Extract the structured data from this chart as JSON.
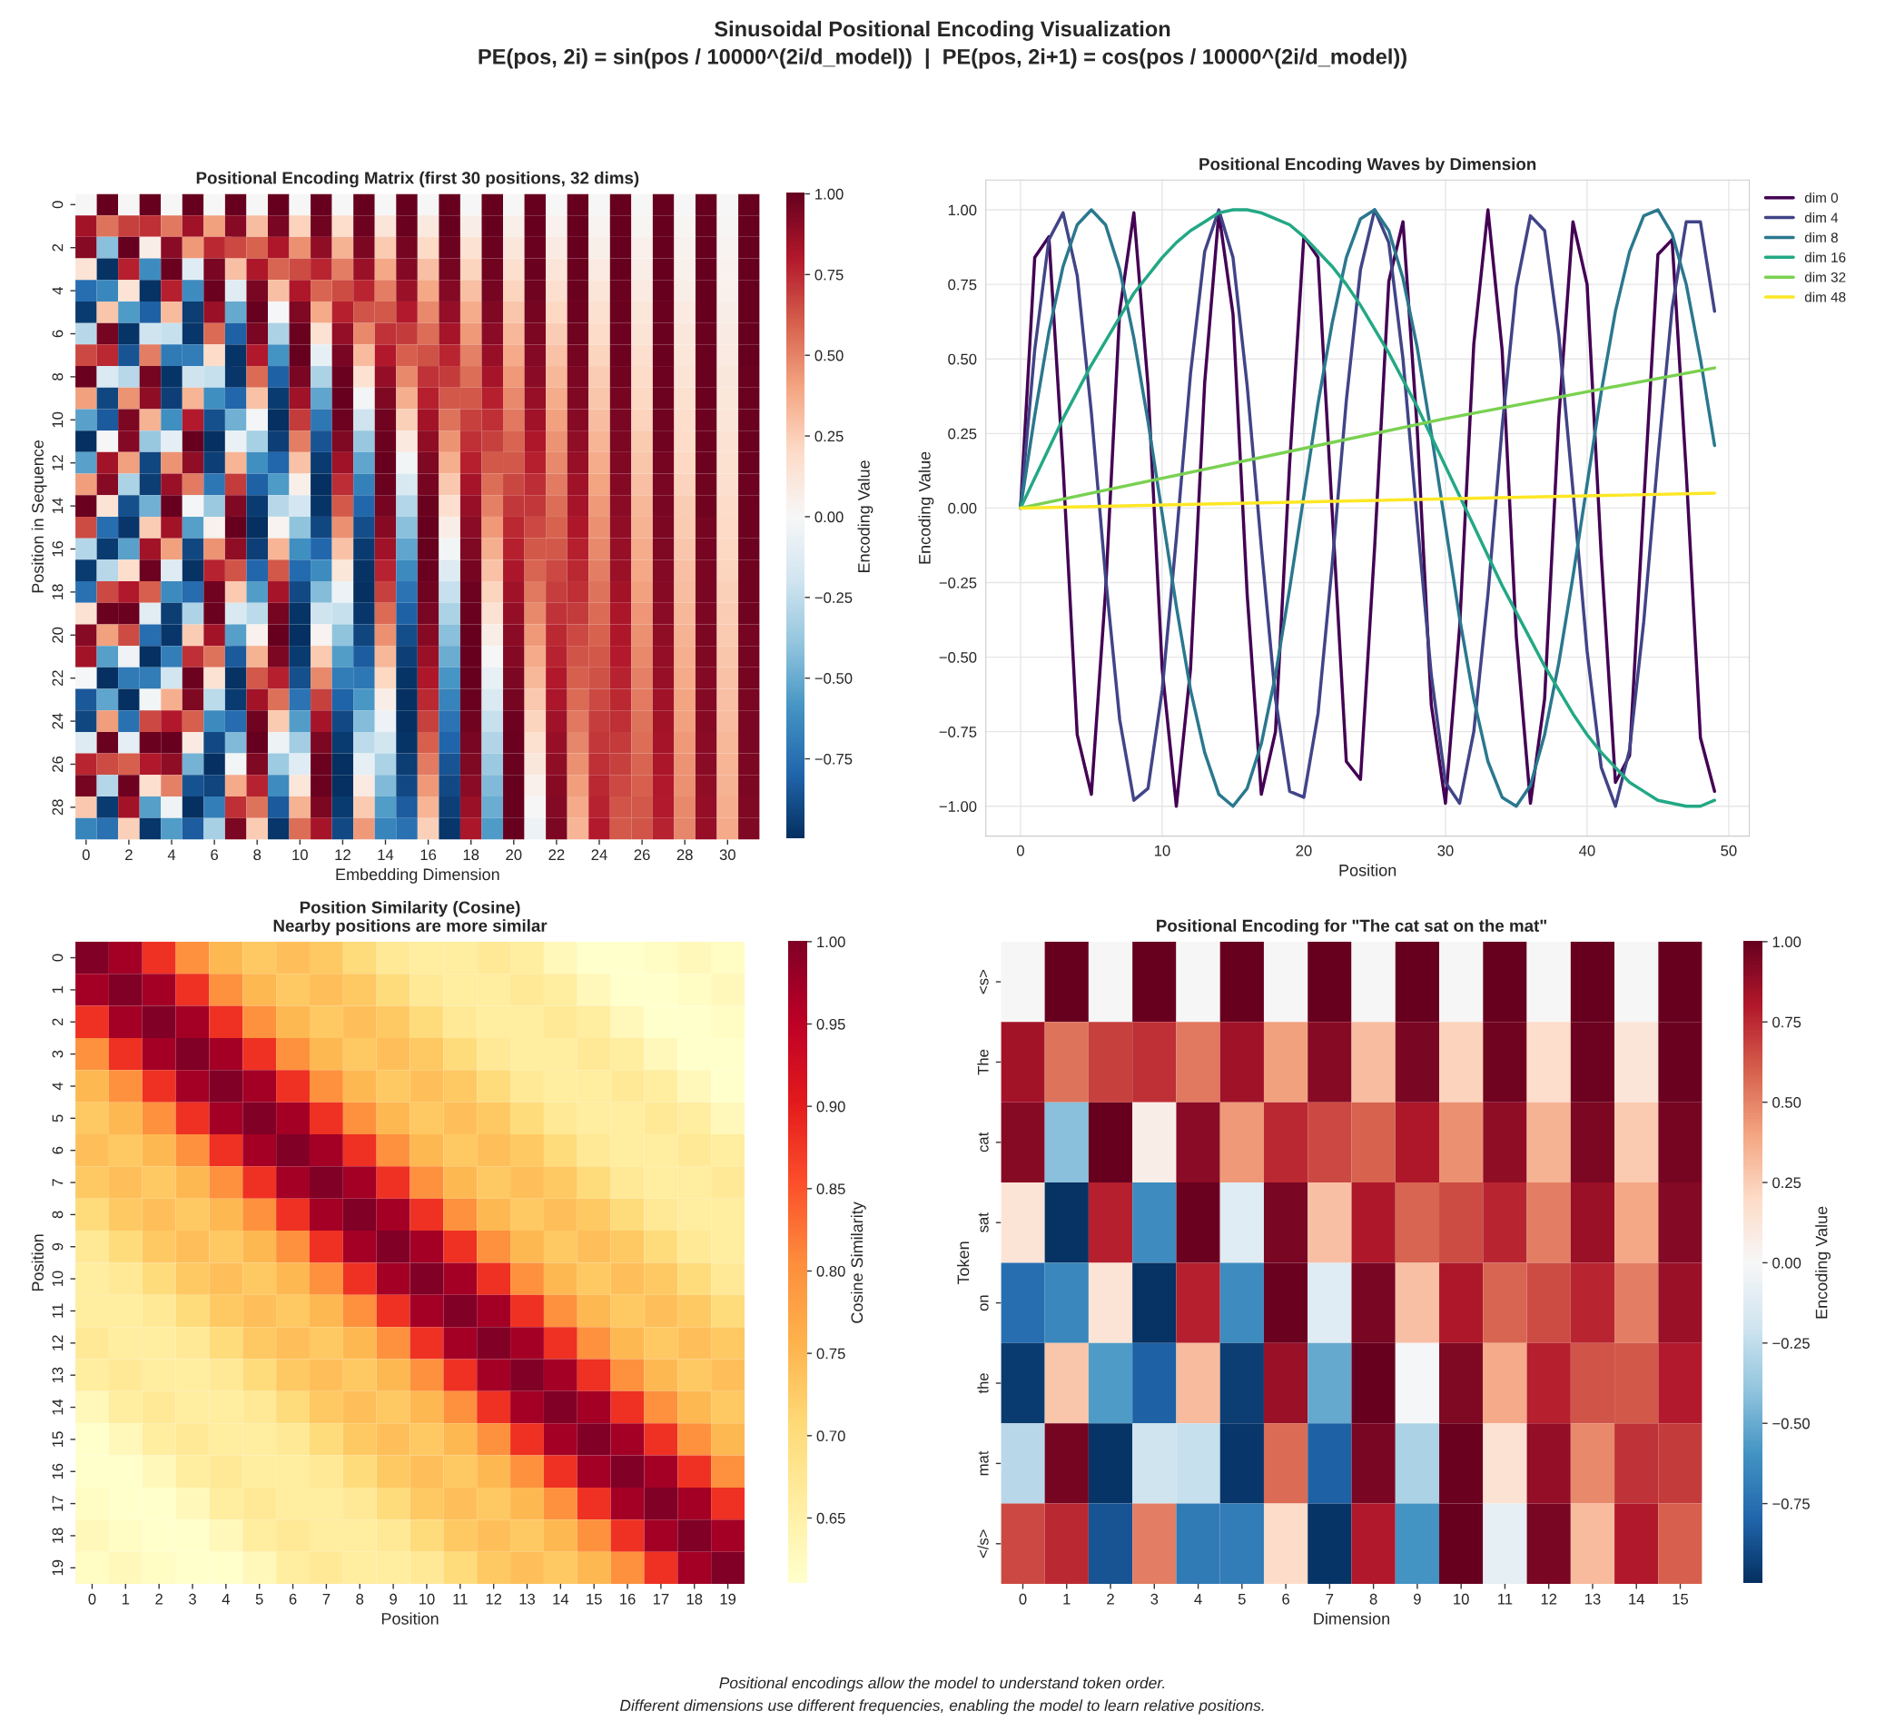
{
  "chart_data": [
    {
      "type": "other",
      "title": "Sinusoidal Positional Encoding Visualization",
      "subtitle": "PE(pos, 2i) = sin(pos / 10000^(2i/d_model))  |  PE(pos, 2i+1) = cos(pos / 10000^(2i/d_model))"
    },
    {
      "type": "heatmap",
      "title": "Positional Encoding Matrix (first 30 positions, 32 dims)",
      "xlabel": "Embedding Dimension",
      "ylabel": "Position in Sequence",
      "clabel": "Encoding Value",
      "categories": [
        "0",
        null,
        "2",
        null,
        "4",
        null,
        "6",
        null,
        "8",
        null,
        "10",
        null,
        "12",
        null,
        "14",
        null,
        "16",
        null,
        "18",
        null,
        "20",
        null,
        "22",
        null,
        "24",
        null,
        "26",
        null,
        "28",
        null,
        "30",
        null
      ],
      "y_categories": [
        "0",
        null,
        "2",
        null,
        "4",
        null,
        "6",
        null,
        "8",
        null,
        "10",
        null,
        "12",
        null,
        "14",
        null,
        "16",
        null,
        "18",
        null,
        "20",
        null,
        "22",
        null,
        "24",
        null,
        "26",
        null,
        "28",
        null
      ],
      "clim": [
        -1.0,
        1.0
      ],
      "cticks": [
        {
          "value": -0.75,
          "label": "−0.75"
        },
        {
          "value": -0.5,
          "label": "−0.50"
        },
        {
          "value": -0.25,
          "label": "−0.25"
        },
        {
          "value": 0,
          "label": "0.00"
        },
        {
          "value": 0.25,
          "label": "0.25"
        },
        {
          "value": 0.5,
          "label": "0.50"
        },
        {
          "value": 0.75,
          "label": "0.75"
        },
        {
          "value": 1,
          "label": "1.00"
        }
      ],
      "cells": [
        [
          0,
          1,
          0,
          1,
          0,
          1,
          0,
          1,
          0,
          1,
          0,
          1,
          0,
          1,
          0,
          1,
          0,
          1,
          0,
          1,
          0,
          1,
          0,
          1,
          0,
          1,
          0,
          1,
          0,
          1,
          0,
          1
        ],
        [
          0.84,
          0.54,
          0.68,
          0.73,
          0.53,
          0.85,
          0.41,
          0.91,
          0.31,
          0.95,
          0.23,
          0.97,
          0.18,
          0.98,
          0.13,
          0.99,
          0.1,
          1.0,
          0.07,
          1.0,
          0.06,
          1.0,
          0.04,
          1.0,
          0.03,
          1.0,
          0.02,
          1.0,
          0.02,
          1.0,
          0.01,
          1.0
        ],
        [
          0.91,
          -0.42,
          1.0,
          0.07,
          0.9,
          0.43,
          0.75,
          0.66,
          0.59,
          0.81,
          0.46,
          0.89,
          0.35,
          0.94,
          0.26,
          0.96,
          0.2,
          0.98,
          0.15,
          0.99,
          0.11,
          0.99,
          0.08,
          1.0,
          0.06,
          1.0,
          0.05,
          1.0,
          0.04,
          1.0,
          0.03,
          1.0
        ],
        [
          0.14,
          -0.99,
          0.78,
          -0.63,
          0.99,
          -0.12,
          0.95,
          0.3,
          0.81,
          0.58,
          0.65,
          0.76,
          0.51,
          0.86,
          0.39,
          0.92,
          0.3,
          0.96,
          0.22,
          0.97,
          0.17,
          0.99,
          0.13,
          0.99,
          0.09,
          1.0,
          0.07,
          1.0,
          0.05,
          1.0,
          0.04,
          1.0
        ],
        [
          -0.76,
          -0.65,
          0.14,
          -0.99,
          0.78,
          -0.63,
          0.99,
          -0.12,
          0.95,
          0.3,
          0.81,
          0.58,
          0.65,
          0.76,
          0.51,
          0.86,
          0.39,
          0.92,
          0.3,
          0.96,
          0.22,
          0.97,
          0.17,
          0.99,
          0.13,
          0.99,
          0.09,
          1.0,
          0.07,
          1.0,
          0.05,
          1.0
        ],
        [
          -0.96,
          0.28,
          -0.57,
          -0.82,
          0.32,
          -0.95,
          0.86,
          -0.51,
          1.0,
          -0.01,
          0.93,
          0.38,
          0.78,
          0.63,
          0.62,
          0.79,
          0.48,
          0.88,
          0.37,
          0.93,
          0.28,
          0.96,
          0.21,
          0.98,
          0.16,
          0.99,
          0.12,
          0.99,
          0.09,
          1.0,
          0.07,
          1.0
        ],
        [
          -0.28,
          0.96,
          -0.98,
          -0.21,
          -0.23,
          -0.97,
          0.57,
          -0.82,
          0.95,
          -0.32,
          0.99,
          0.15,
          0.88,
          0.48,
          0.72,
          0.7,
          0.56,
          0.83,
          0.43,
          0.9,
          0.33,
          0.94,
          0.25,
          0.97,
          0.19,
          0.98,
          0.14,
          0.99,
          0.11,
          0.99,
          0.08,
          1.0
        ],
        [
          0.66,
          0.75,
          -0.86,
          0.51,
          -0.71,
          -0.7,
          0.19,
          -0.98,
          0.8,
          -0.6,
          1.0,
          -0.09,
          0.95,
          0.32,
          0.8,
          0.6,
          0.64,
          0.76,
          0.5,
          0.87,
          0.38,
          0.92,
          0.29,
          0.96,
          0.22,
          0.98,
          0.17,
          0.99,
          0.12,
          0.99,
          0.09,
          1.0
        ],
        [
          0.99,
          -0.15,
          -0.28,
          0.96,
          -0.98,
          -0.21,
          -0.23,
          -0.97,
          0.57,
          -0.82,
          0.95,
          -0.32,
          0.99,
          0.15,
          0.88,
          0.48,
          0.72,
          0.7,
          0.56,
          0.83,
          0.43,
          0.9,
          0.33,
          0.94,
          0.25,
          0.97,
          0.19,
          0.98,
          0.14,
          0.99,
          0.11,
          0.99
        ],
        [
          0.41,
          -0.91,
          0.45,
          0.89,
          -0.94,
          0.34,
          -0.61,
          -0.79,
          0.29,
          -0.96,
          0.85,
          -0.53,
          1.0,
          -0.03,
          0.93,
          0.36,
          0.78,
          0.62,
          0.62,
          0.78,
          0.48,
          0.87,
          0.37,
          0.93,
          0.28,
          0.96,
          0.21,
          0.98,
          0.16,
          0.99,
          0.12,
          0.99
        ],
        [
          -0.54,
          -0.84,
          0.94,
          0.35,
          -0.61,
          0.79,
          -0.88,
          -0.48,
          -0.02,
          -1.0,
          0.7,
          -0.72,
          0.98,
          -0.21,
          0.97,
          0.24,
          0.84,
          0.54,
          0.68,
          0.73,
          0.53,
          0.85,
          0.41,
          0.91,
          0.31,
          0.95,
          0.23,
          0.97,
          0.18,
          0.98,
          0.13,
          0.99
        ],
        [
          -1.0,
          0.0,
          0.92,
          -0.38,
          -0.1,
          1.0,
          -1.0,
          -0.07,
          -0.33,
          -0.94,
          0.51,
          -0.86,
          0.93,
          -0.38,
          0.99,
          0.1,
          0.89,
          0.45,
          0.73,
          0.68,
          0.58,
          0.81,
          0.45,
          0.89,
          0.34,
          0.94,
          0.26,
          0.97,
          0.19,
          0.98,
          0.15,
          0.99
        ],
        [
          -0.54,
          0.84,
          0.41,
          -0.91,
          0.45,
          0.89,
          -0.94,
          0.34,
          -0.61,
          -0.79,
          0.29,
          -0.96,
          0.85,
          -0.53,
          1.0,
          -0.03,
          0.93,
          0.36,
          0.78,
          0.62,
          0.62,
          0.78,
          0.48,
          0.87,
          0.37,
          0.93,
          0.28,
          0.96,
          0.21,
          0.98,
          0.16,
          0.99
        ],
        [
          0.42,
          0.91,
          -0.32,
          -0.95,
          0.86,
          0.52,
          -0.72,
          0.7,
          -0.82,
          -0.57,
          0.06,
          -1.0,
          0.74,
          -0.68,
          0.99,
          -0.16,
          0.96,
          0.27,
          0.83,
          0.56,
          0.67,
          0.74,
          0.52,
          0.85,
          0.4,
          0.92,
          0.3,
          0.95,
          0.23,
          0.97,
          0.17,
          0.98
        ],
        [
          0.99,
          0.14,
          -0.88,
          -0.48,
          1.0,
          -0.02,
          -0.37,
          0.93,
          -0.96,
          -0.28,
          -0.18,
          -0.98,
          0.61,
          -0.79,
          0.96,
          -0.29,
          0.99,
          0.17,
          0.87,
          0.5,
          0.71,
          0.71,
          0.56,
          0.83,
          0.43,
          0.9,
          0.33,
          0.95,
          0.25,
          0.97,
          0.19,
          0.98
        ],
        [
          0.65,
          -0.76,
          -0.97,
          0.25,
          0.84,
          -0.55,
          0.04,
          1.0,
          -1.0,
          0.03,
          -0.4,
          -0.91,
          0.46,
          -0.89,
          0.91,
          -0.42,
          1.0,
          0.07,
          0.9,
          0.43,
          0.75,
          0.66,
          0.59,
          0.81,
          0.46,
          0.89,
          0.35,
          0.94,
          0.26,
          0.96,
          0.2,
          0.98
        ],
        [
          -0.29,
          -0.96,
          -0.54,
          0.84,
          0.41,
          -0.91,
          0.45,
          0.89,
          -0.94,
          0.34,
          -0.61,
          -0.79,
          0.29,
          -0.96,
          0.85,
          -0.53,
          1.0,
          -0.03,
          0.93,
          0.36,
          0.78,
          0.62,
          0.62,
          0.78,
          0.48,
          0.87,
          0.37,
          0.93,
          0.28,
          0.96,
          0.21,
          0.98
        ],
        [
          -0.96,
          -0.28,
          0.18,
          0.98,
          -0.13,
          -0.99,
          0.77,
          0.63,
          -0.79,
          0.62,
          -0.78,
          -0.63,
          0.12,
          -0.99,
          0.77,
          -0.64,
          0.99,
          -0.13,
          0.96,
          0.29,
          0.82,
          0.58,
          0.66,
          0.75,
          0.51,
          0.86,
          0.39,
          0.92,
          0.3,
          0.95,
          0.22,
          0.97
        ],
        [
          -0.75,
          0.66,
          0.8,
          0.6,
          -0.64,
          -0.77,
          0.97,
          0.26,
          -0.56,
          0.83,
          -0.9,
          -0.43,
          -0.06,
          -1.0,
          0.68,
          -0.74,
          0.97,
          -0.23,
          0.98,
          0.22,
          0.85,
          0.53,
          0.69,
          0.73,
          0.54,
          0.84,
          0.41,
          0.91,
          0.31,
          0.95,
          0.24,
          0.97
        ],
        [
          0.15,
          0.99,
          0.99,
          -0.11,
          -0.95,
          -0.31,
          0.99,
          -0.16,
          -0.27,
          0.96,
          -0.98,
          -0.21,
          -0.23,
          -0.97,
          0.57,
          -0.82,
          0.95,
          -0.32,
          0.99,
          0.15,
          0.88,
          0.48,
          0.72,
          0.7,
          0.57,
          0.82,
          0.44,
          0.9,
          0.33,
          0.94,
          0.25,
          0.97
        ],
        [
          0.91,
          0.41,
          0.65,
          -0.76,
          -0.97,
          0.25,
          0.84,
          -0.55,
          0.04,
          1.0,
          -1.0,
          0.03,
          -0.4,
          -0.92,
          0.46,
          -0.89,
          0.91,
          -0.42,
          1.0,
          0.07,
          0.9,
          0.43,
          0.75,
          0.66,
          0.59,
          0.81,
          0.46,
          0.89,
          0.35,
          0.94,
          0.26,
          0.96
        ],
        [
          0.84,
          -0.55,
          -0.04,
          -1.0,
          -0.69,
          0.73,
          0.54,
          -0.84,
          0.35,
          0.94,
          -0.96,
          0.26,
          -0.56,
          -0.83,
          0.33,
          -0.94,
          0.86,
          -0.5,
          1.0,
          0.0,
          0.92,
          0.38,
          0.77,
          0.63,
          0.62,
          0.79,
          0.48,
          0.88,
          0.36,
          0.93,
          0.28,
          0.96
        ],
        [
          -0.01,
          -1.0,
          -0.71,
          -0.7,
          -0.19,
          0.98,
          0.15,
          -0.99,
          0.62,
          0.78,
          -0.88,
          0.48,
          -0.7,
          -0.72,
          0.21,
          -0.98,
          0.81,
          -0.59,
          1.0,
          -0.08,
          0.94,
          0.33,
          0.8,
          0.6,
          0.64,
          0.77,
          0.5,
          0.87,
          0.38,
          0.92,
          0.29,
          0.96
        ],
        [
          -0.85,
          -0.53,
          -1.0,
          -0.03,
          0.36,
          0.93,
          -0.27,
          -0.96,
          0.84,
          0.55,
          -0.74,
          0.68,
          -0.81,
          -0.58,
          0.07,
          -1.0,
          0.75,
          -0.67,
          0.99,
          -0.15,
          0.96,
          0.27,
          0.82,
          0.57,
          0.66,
          0.75,
          0.52,
          0.85,
          0.4,
          0.92,
          0.3,
          0.95
        ],
        [
          -0.91,
          0.42,
          -0.75,
          0.66,
          0.8,
          0.6,
          -0.64,
          -0.77,
          0.97,
          0.26,
          -0.56,
          0.83,
          -0.9,
          -0.43,
          -0.06,
          -1.0,
          0.68,
          -0.74,
          0.97,
          -0.23,
          0.98,
          0.22,
          0.85,
          0.53,
          0.69,
          0.73,
          0.54,
          0.84,
          0.41,
          0.91,
          0.31,
          0.95
        ],
        [
          -0.13,
          0.99,
          -0.1,
          0.99,
          1.0,
          0.08,
          -0.9,
          -0.44,
          1.0,
          -0.05,
          -0.35,
          0.94,
          -0.96,
          -0.26,
          -0.19,
          -0.98,
          0.6,
          -0.8,
          0.95,
          -0.3,
          0.99,
          0.16,
          0.87,
          0.49,
          0.71,
          0.7,
          0.56,
          0.83,
          0.43,
          0.9,
          0.33,
          0.95
        ],
        [
          0.76,
          0.65,
          0.6,
          0.8,
          0.89,
          -0.47,
          -1.0,
          -0.03,
          0.93,
          -0.36,
          -0.12,
          0.99,
          -1.0,
          -0.09,
          -0.32,
          -0.95,
          0.52,
          -0.86,
          0.93,
          -0.37,
          0.99,
          0.11,
          0.89,
          0.46,
          0.73,
          0.68,
          0.58,
          0.82,
          0.45,
          0.9,
          0.34,
          0.94
        ],
        [
          0.96,
          -0.29,
          0.98,
          0.17,
          0.5,
          -0.87,
          -0.92,
          0.38,
          0.77,
          -0.63,
          0.12,
          0.99,
          -1.0,
          0.09,
          -0.44,
          -0.9,
          0.43,
          -0.9,
          0.9,
          -0.44,
          1.0,
          0.05,
          0.91,
          0.42,
          0.75,
          0.66,
          0.6,
          0.8,
          0.46,
          0.89,
          0.35,
          0.94
        ],
        [
          0.27,
          -0.96,
          0.84,
          -0.55,
          -0.04,
          -1.0,
          -0.69,
          0.73,
          0.54,
          -0.84,
          0.35,
          0.94,
          -0.96,
          0.26,
          -0.56,
          -0.83,
          0.34,
          -0.94,
          0.86,
          -0.5,
          1.0,
          0.0,
          0.92,
          0.38,
          0.77,
          0.63,
          0.62,
          0.79,
          0.48,
          0.88,
          0.36,
          0.93
        ],
        [
          -0.66,
          -0.75,
          0.24,
          -0.97,
          -0.56,
          -0.83,
          -0.33,
          0.94,
          0.25,
          -0.97,
          0.56,
          0.83,
          -0.9,
          0.43,
          -0.66,
          -0.75,
          0.24,
          -0.97,
          0.82,
          -0.57,
          1.0,
          -0.06,
          0.94,
          0.34,
          0.79,
          0.61,
          0.63,
          0.77,
          0.49,
          0.87,
          0.38,
          0.93
        ]
      ]
    },
    {
      "type": "line",
      "title": "Positional Encoding Waves by Dimension",
      "xlabel": "Position",
      "ylabel": "Encoding Value",
      "grid": true,
      "legend": "top right",
      "xlim": [
        -2.45,
        51.45
      ],
      "ylim": [
        -1.1,
        1.1
      ],
      "xticks": [
        0,
        10,
        20,
        30,
        40,
        50
      ],
      "yticks": [
        {
          "value": -1,
          "label": "−1.00"
        },
        {
          "value": -0.75,
          "label": "−0.75"
        },
        {
          "value": -0.5,
          "label": "−0.50"
        },
        {
          "value": -0.25,
          "label": "−0.25"
        },
        {
          "value": 0,
          "label": "0.00"
        },
        {
          "value": 0.25,
          "label": "0.25"
        },
        {
          "value": 0.5,
          "label": "0.50"
        },
        {
          "value": 0.75,
          "label": "0.75"
        },
        {
          "value": 1,
          "label": "1.00"
        }
      ],
      "x": [
        0,
        1,
        2,
        3,
        4,
        5,
        6,
        7,
        8,
        9,
        10,
        11,
        12,
        13,
        14,
        15,
        16,
        17,
        18,
        19,
        20,
        21,
        22,
        23,
        24,
        25,
        26,
        27,
        28,
        29,
        30,
        31,
        32,
        33,
        34,
        35,
        36,
        37,
        38,
        39,
        40,
        41,
        42,
        43,
        44,
        45,
        46,
        47,
        48,
        49
      ],
      "series": [
        {
          "name": "dim 0",
          "color": "#440154",
          "values": [
            0,
            0.84,
            0.91,
            0.14,
            -0.76,
            -0.96,
            -0.28,
            0.66,
            0.99,
            0.41,
            -0.54,
            -1.0,
            -0.54,
            0.42,
            0.99,
            0.65,
            -0.29,
            -0.96,
            -0.75,
            0.15,
            0.91,
            0.84,
            -0.01,
            -0.85,
            -0.91,
            -0.13,
            0.76,
            0.96,
            0.27,
            -0.66,
            -0.99,
            -0.4,
            0.55,
            1.0,
            0.53,
            -0.43,
            -0.99,
            -0.64,
            0.3,
            0.96,
            0.75,
            -0.16,
            -0.92,
            -0.83,
            0.02,
            0.85,
            0.9,
            0.12,
            -0.77,
            -0.95
          ]
        },
        {
          "name": "dim 4",
          "color": "#414487",
          "values": [
            0,
            0.53,
            0.9,
            0.99,
            0.78,
            0.32,
            -0.23,
            -0.71,
            -0.98,
            -0.94,
            -0.61,
            -0.1,
            0.45,
            0.86,
            1.0,
            0.84,
            0.41,
            -0.13,
            -0.64,
            -0.95,
            -0.97,
            -0.69,
            -0.19,
            0.36,
            0.8,
            1.0,
            0.89,
            0.5,
            -0.04,
            -0.56,
            -0.92,
            -0.99,
            -0.75,
            -0.29,
            0.27,
            0.74,
            0.98,
            0.93,
            0.58,
            0.06,
            -0.48,
            -0.87,
            -1.0,
            -0.81,
            -0.38,
            0.17,
            0.67,
            0.96,
            0.96,
            0.66
          ]
        },
        {
          "name": "dim 8",
          "color": "#2a788e",
          "values": [
            0,
            0.31,
            0.59,
            0.81,
            0.95,
            1.0,
            0.95,
            0.8,
            0.57,
            0.29,
            -0.02,
            -0.33,
            -0.61,
            -0.82,
            -0.96,
            -1.0,
            -0.94,
            -0.79,
            -0.56,
            -0.27,
            0.04,
            0.35,
            0.62,
            0.84,
            0.97,
            1.0,
            0.93,
            0.77,
            0.54,
            0.25,
            -0.06,
            -0.37,
            -0.64,
            -0.85,
            -0.97,
            -1.0,
            -0.93,
            -0.76,
            -0.52,
            -0.23,
            0.08,
            0.39,
            0.66,
            0.86,
            0.98,
            1.0,
            0.92,
            0.75,
            0.5,
            0.21
          ]
        },
        {
          "name": "dim 16",
          "color": "#22a884",
          "values": [
            0,
            0.1,
            0.2,
            0.3,
            0.39,
            0.48,
            0.56,
            0.64,
            0.72,
            0.78,
            0.84,
            0.89,
            0.93,
            0.96,
            0.99,
            1.0,
            1.0,
            0.99,
            0.97,
            0.95,
            0.91,
            0.86,
            0.81,
            0.75,
            0.68,
            0.6,
            0.52,
            0.43,
            0.34,
            0.24,
            0.14,
            0.04,
            -0.06,
            -0.16,
            -0.26,
            -0.35,
            -0.44,
            -0.53,
            -0.61,
            -0.69,
            -0.76,
            -0.82,
            -0.87,
            -0.92,
            -0.95,
            -0.98,
            -0.99,
            -1.0,
            -1.0,
            -0.98
          ]
        },
        {
          "name": "dim 32",
          "color": "#7ad151",
          "x": [
            0,
            10,
            20,
            30,
            40,
            49
          ],
          "values": [
            0,
            0.1,
            0.2,
            0.3,
            0.39,
            0.47
          ]
        },
        {
          "name": "dim 48",
          "color": "#fde725",
          "x": [
            0,
            49
          ],
          "values": [
            0,
            0.05
          ]
        }
      ]
    },
    {
      "type": "heatmap",
      "title": "Position Similarity (Cosine)",
      "subtitle": "Nearby positions are more similar",
      "xlabel": "Position",
      "ylabel": "Position",
      "clabel": "Cosine Similarity",
      "categories": [
        "0",
        "1",
        "2",
        "3",
        "4",
        "5",
        "6",
        "7",
        "8",
        "9",
        "10",
        "11",
        "12",
        "13",
        "14",
        "15",
        "16",
        "17",
        "18",
        "19"
      ],
      "y_categories": [
        "0",
        "1",
        "2",
        "3",
        "4",
        "5",
        "6",
        "7",
        "8",
        "9",
        "10",
        "11",
        "12",
        "13",
        "14",
        "15",
        "16",
        "17",
        "18",
        "19"
      ],
      "clim": [
        0.61,
        1.0
      ],
      "cticks": [
        {
          "value": 0.65,
          "label": "0.65"
        },
        {
          "value": 0.7,
          "label": "0.70"
        },
        {
          "value": 0.75,
          "label": "0.75"
        },
        {
          "value": 0.8,
          "label": "0.80"
        },
        {
          "value": 0.85,
          "label": "0.85"
        },
        {
          "value": 0.9,
          "label": "0.90"
        },
        {
          "value": 0.95,
          "label": "0.95"
        },
        {
          "value": 1.0,
          "label": "1.00"
        }
      ],
      "cells": [
        [
          1.0,
          0.97,
          0.88,
          0.8,
          0.75,
          0.73,
          0.74,
          0.73,
          0.7,
          0.67,
          0.66,
          0.66,
          0.67,
          0.66,
          0.63,
          0.61,
          0.61,
          0.62,
          0.63,
          0.62
        ],
        [
          0.97,
          1.0,
          0.97,
          0.88,
          0.8,
          0.75,
          0.73,
          0.74,
          0.73,
          0.7,
          0.67,
          0.66,
          0.66,
          0.67,
          0.66,
          0.63,
          0.61,
          0.61,
          0.62,
          0.63
        ],
        [
          0.88,
          0.97,
          1.0,
          0.97,
          0.88,
          0.8,
          0.75,
          0.73,
          0.74,
          0.73,
          0.7,
          0.67,
          0.66,
          0.66,
          0.67,
          0.66,
          0.63,
          0.61,
          0.61,
          0.62
        ],
        [
          0.8,
          0.88,
          0.97,
          1.0,
          0.97,
          0.88,
          0.8,
          0.75,
          0.73,
          0.74,
          0.73,
          0.7,
          0.67,
          0.66,
          0.66,
          0.67,
          0.66,
          0.63,
          0.61,
          0.61
        ],
        [
          0.75,
          0.8,
          0.88,
          0.97,
          1.0,
          0.97,
          0.88,
          0.8,
          0.75,
          0.73,
          0.74,
          0.73,
          0.7,
          0.67,
          0.66,
          0.66,
          0.67,
          0.66,
          0.63,
          0.61
        ],
        [
          0.73,
          0.75,
          0.8,
          0.88,
          0.97,
          1.0,
          0.97,
          0.88,
          0.8,
          0.75,
          0.73,
          0.74,
          0.73,
          0.7,
          0.67,
          0.66,
          0.66,
          0.67,
          0.66,
          0.63
        ],
        [
          0.74,
          0.73,
          0.75,
          0.8,
          0.88,
          0.97,
          1.0,
          0.97,
          0.88,
          0.8,
          0.75,
          0.73,
          0.74,
          0.73,
          0.7,
          0.67,
          0.66,
          0.66,
          0.67,
          0.66
        ],
        [
          0.73,
          0.74,
          0.73,
          0.75,
          0.8,
          0.88,
          0.97,
          1.0,
          0.97,
          0.88,
          0.8,
          0.75,
          0.73,
          0.74,
          0.73,
          0.7,
          0.67,
          0.66,
          0.66,
          0.67
        ],
        [
          0.7,
          0.73,
          0.74,
          0.73,
          0.75,
          0.8,
          0.88,
          0.97,
          1.0,
          0.97,
          0.88,
          0.8,
          0.75,
          0.73,
          0.74,
          0.73,
          0.7,
          0.67,
          0.66,
          0.66
        ],
        [
          0.67,
          0.7,
          0.73,
          0.74,
          0.73,
          0.75,
          0.8,
          0.88,
          0.97,
          1.0,
          0.97,
          0.88,
          0.8,
          0.75,
          0.73,
          0.74,
          0.73,
          0.7,
          0.67,
          0.66
        ],
        [
          0.66,
          0.67,
          0.7,
          0.73,
          0.74,
          0.73,
          0.75,
          0.8,
          0.88,
          0.97,
          1.0,
          0.97,
          0.88,
          0.8,
          0.75,
          0.73,
          0.74,
          0.73,
          0.7,
          0.67
        ],
        [
          0.66,
          0.66,
          0.67,
          0.7,
          0.73,
          0.74,
          0.73,
          0.75,
          0.8,
          0.88,
          0.97,
          1.0,
          0.97,
          0.88,
          0.8,
          0.75,
          0.73,
          0.74,
          0.73,
          0.7
        ],
        [
          0.67,
          0.66,
          0.66,
          0.67,
          0.7,
          0.73,
          0.74,
          0.73,
          0.75,
          0.8,
          0.88,
          0.97,
          1.0,
          0.97,
          0.88,
          0.8,
          0.75,
          0.73,
          0.74,
          0.73
        ],
        [
          0.66,
          0.67,
          0.66,
          0.66,
          0.67,
          0.7,
          0.73,
          0.74,
          0.73,
          0.75,
          0.8,
          0.88,
          0.97,
          1.0,
          0.97,
          0.88,
          0.8,
          0.75,
          0.73,
          0.74
        ],
        [
          0.63,
          0.66,
          0.67,
          0.66,
          0.66,
          0.67,
          0.7,
          0.73,
          0.74,
          0.73,
          0.75,
          0.8,
          0.88,
          0.97,
          1.0,
          0.97,
          0.88,
          0.8,
          0.75,
          0.73
        ],
        [
          0.61,
          0.63,
          0.66,
          0.67,
          0.66,
          0.66,
          0.67,
          0.7,
          0.73,
          0.74,
          0.73,
          0.75,
          0.8,
          0.88,
          0.97,
          1.0,
          0.97,
          0.88,
          0.8,
          0.75
        ],
        [
          0.61,
          0.61,
          0.63,
          0.66,
          0.67,
          0.66,
          0.66,
          0.67,
          0.7,
          0.73,
          0.74,
          0.73,
          0.75,
          0.8,
          0.88,
          0.97,
          1.0,
          0.97,
          0.88,
          0.8
        ],
        [
          0.62,
          0.61,
          0.61,
          0.63,
          0.66,
          0.67,
          0.66,
          0.66,
          0.67,
          0.7,
          0.73,
          0.74,
          0.73,
          0.75,
          0.8,
          0.88,
          0.97,
          1.0,
          0.97,
          0.88
        ],
        [
          0.63,
          0.62,
          0.61,
          0.61,
          0.63,
          0.66,
          0.67,
          0.66,
          0.66,
          0.67,
          0.7,
          0.73,
          0.74,
          0.73,
          0.75,
          0.8,
          0.88,
          0.97,
          1.0,
          0.97
        ],
        [
          0.62,
          0.63,
          0.62,
          0.61,
          0.61,
          0.63,
          0.66,
          0.67,
          0.66,
          0.66,
          0.67,
          0.7,
          0.73,
          0.74,
          0.73,
          0.75,
          0.8,
          0.88,
          0.97,
          1.0
        ]
      ]
    },
    {
      "type": "heatmap",
      "title": "Positional Encoding for \"The cat sat on the mat\"",
      "xlabel": "Dimension",
      "ylabel": "Token",
      "clabel": "Encoding Value",
      "categories": [
        "0",
        "1",
        "2",
        "3",
        "4",
        "5",
        "6",
        "7",
        "8",
        "9",
        "10",
        "11",
        "12",
        "13",
        "14",
        "15"
      ],
      "y_categories": [
        "<s>",
        "The",
        "cat",
        "sat",
        "on",
        "the",
        "mat",
        "</s>"
      ],
      "clim": [
        -1.0,
        1.0
      ],
      "cticks": [
        {
          "value": -0.75,
          "label": "−0.75"
        },
        {
          "value": -0.5,
          "label": "−0.50"
        },
        {
          "value": -0.25,
          "label": "−0.25"
        },
        {
          "value": 0,
          "label": "0.00"
        },
        {
          "value": 0.25,
          "label": "0.25"
        },
        {
          "value": 0.5,
          "label": "0.50"
        },
        {
          "value": 0.75,
          "label": "0.75"
        },
        {
          "value": 1,
          "label": "1.00"
        }
      ],
      "cells": [
        [
          0,
          1,
          0,
          1,
          0,
          1,
          0,
          1,
          0,
          1,
          0,
          1,
          0,
          1,
          0,
          1
        ],
        [
          0.84,
          0.54,
          0.68,
          0.73,
          0.53,
          0.85,
          0.41,
          0.91,
          0.31,
          0.95,
          0.23,
          0.97,
          0.18,
          0.98,
          0.13,
          0.99
        ],
        [
          0.91,
          -0.42,
          1.0,
          0.07,
          0.9,
          0.43,
          0.75,
          0.66,
          0.59,
          0.81,
          0.46,
          0.89,
          0.35,
          0.94,
          0.26,
          0.96
        ],
        [
          0.14,
          -0.99,
          0.78,
          -0.63,
          0.99,
          -0.12,
          0.95,
          0.3,
          0.81,
          0.58,
          0.65,
          0.76,
          0.51,
          0.86,
          0.39,
          0.92
        ],
        [
          -0.76,
          -0.65,
          0.14,
          -0.99,
          0.78,
          -0.63,
          0.99,
          -0.12,
          0.95,
          0.3,
          0.81,
          0.58,
          0.65,
          0.76,
          0.51,
          0.86
        ],
        [
          -0.96,
          0.28,
          -0.57,
          -0.82,
          0.32,
          -0.95,
          0.86,
          -0.51,
          1.0,
          -0.01,
          0.93,
          0.38,
          0.78,
          0.63,
          0.62,
          0.79
        ],
        [
          -0.28,
          0.96,
          -0.98,
          -0.21,
          -0.23,
          -0.97,
          0.57,
          -0.82,
          0.95,
          -0.32,
          0.99,
          0.15,
          0.88,
          0.48,
          0.72,
          0.7
        ],
        [
          0.66,
          0.75,
          -0.86,
          0.51,
          -0.71,
          -0.7,
          0.19,
          -0.98,
          0.8,
          -0.6,
          1.0,
          -0.09,
          0.95,
          0.32,
          0.8,
          0.6
        ]
      ]
    },
    {
      "type": "other",
      "annotations": [
        "Positional encodings allow the model to understand token order.",
        "Different dimensions use different frequencies, enabling the model to learn relative positions."
      ]
    }
  ]
}
